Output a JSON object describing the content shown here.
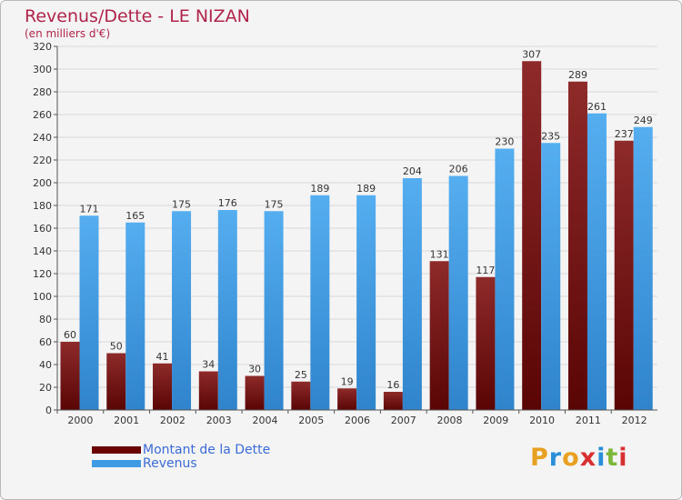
{
  "title": "Revenus/Dette - LE NIZAN",
  "subtitle": "(en milliers d'€)",
  "chart_data": {
    "type": "bar",
    "title": "Revenus/Dette - LE NIZAN",
    "ylabel": "(en milliers d'€)",
    "xlabel": "",
    "ylim": [
      0,
      320
    ],
    "yticks": [
      0,
      20,
      40,
      60,
      80,
      100,
      120,
      140,
      160,
      180,
      200,
      220,
      240,
      260,
      280,
      300,
      320
    ],
    "grid": true,
    "categories": [
      "2000",
      "2001",
      "2002",
      "2003",
      "2004",
      "2005",
      "2006",
      "2007",
      "2008",
      "2009",
      "2010",
      "2011",
      "2012"
    ],
    "series": [
      {
        "name": "Montant de la Dette",
        "color": "#7a1010",
        "values": [
          60,
          50,
          41,
          34,
          30,
          25,
          19,
          16,
          131,
          117,
          307,
          289,
          237
        ]
      },
      {
        "name": "Revenus",
        "color": "#3f9be4",
        "values": [
          171,
          165,
          175,
          176,
          175,
          189,
          189,
          204,
          206,
          230,
          235,
          261,
          249
        ]
      }
    ],
    "legend": "bottom-left"
  },
  "legend": {
    "items": [
      {
        "label": "Montant de la Dette",
        "color": "#6b0000"
      },
      {
        "label": "Revenus",
        "color": "#3f9be4"
      }
    ]
  },
  "logo": {
    "letters": [
      "P",
      "r",
      "o",
      "x",
      "i",
      "t",
      "i"
    ],
    "colors": [
      "#e8a020",
      "#2a8fd8",
      "#e8a020",
      "#d83030",
      "#2a8fd8",
      "#7cb83a",
      "#d83030"
    ]
  }
}
